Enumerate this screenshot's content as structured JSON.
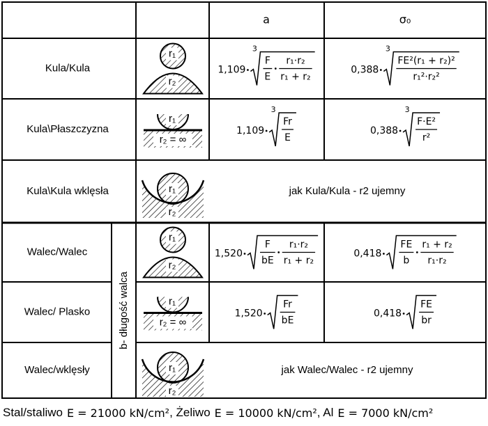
{
  "table": {
    "header": [
      "a",
      "σ₀"
    ],
    "side_label": "b- długość walca",
    "rows": [
      {
        "label": "Kula/Kula",
        "icon": [
          "r₁",
          "r₂"
        ],
        "a": {
          "coef": "1,109",
          "index": "3",
          "terms": [
            {
              "num": "F",
              "den": "E"
            },
            {
              "num": "r₁·r₂",
              "den": "r₁ + r₂"
            }
          ]
        },
        "sigma": {
          "coef": "0,388",
          "index": "3",
          "terms": [
            {
              "num": "FE²(r₁ + r₂)²",
              "den": "r₁²·r₂²"
            }
          ]
        }
      },
      {
        "label": "Kula\\Płaszczyzna",
        "icon": [
          "r₁",
          "r₂ = ∞"
        ],
        "a": {
          "coef": "1,109",
          "index": "3",
          "terms": [
            {
              "num": "Fr",
              "den": "E"
            }
          ]
        },
        "sigma": {
          "coef": "0,388",
          "index": "3",
          "terms": [
            {
              "num": "F·E²",
              "den": "r²"
            }
          ]
        }
      },
      {
        "label": "Kula\\Kula wklęsła",
        "icon": [
          "r₁",
          "r₂"
        ],
        "note": "jak Kula/Kula - r2 ujemny"
      },
      {
        "label": "Walec/Walec",
        "icon": [
          "r₁",
          "r₂"
        ],
        "a": {
          "coef": "1,520",
          "terms": [
            {
              "num": "F",
              "den": "bE"
            },
            {
              "num": "r₁·r₂",
              "den": "r₁ + r₂"
            }
          ]
        },
        "sigma": {
          "coef": "0,418",
          "terms": [
            {
              "num": "FE",
              "den": "b"
            },
            {
              "num": "r₁ + r₂",
              "den": "r₁·r₂"
            }
          ]
        }
      },
      {
        "label": "Walec/ Plasko",
        "icon": [
          "r₁",
          "r₂ = ∞"
        ],
        "a": {
          "coef": "1,520",
          "terms": [
            {
              "num": "Fr",
              "den": "bE"
            }
          ]
        },
        "sigma": {
          "coef": "0,418",
          "terms": [
            {
              "num": "FE",
              "den": "br"
            }
          ]
        }
      },
      {
        "label": "Walec/wklęsły",
        "icon": [
          "r₁",
          "r₂"
        ],
        "note": "jak Walec/Walec - r2 ujemny"
      }
    ]
  },
  "footer": [
    "Stal/staliwo",
    "E = 21000 kN/cm²",
    ", Żeliwo",
    "E = 10000 kN/cm²",
    ", Al",
    "E = 7000 kN/cm²"
  ]
}
